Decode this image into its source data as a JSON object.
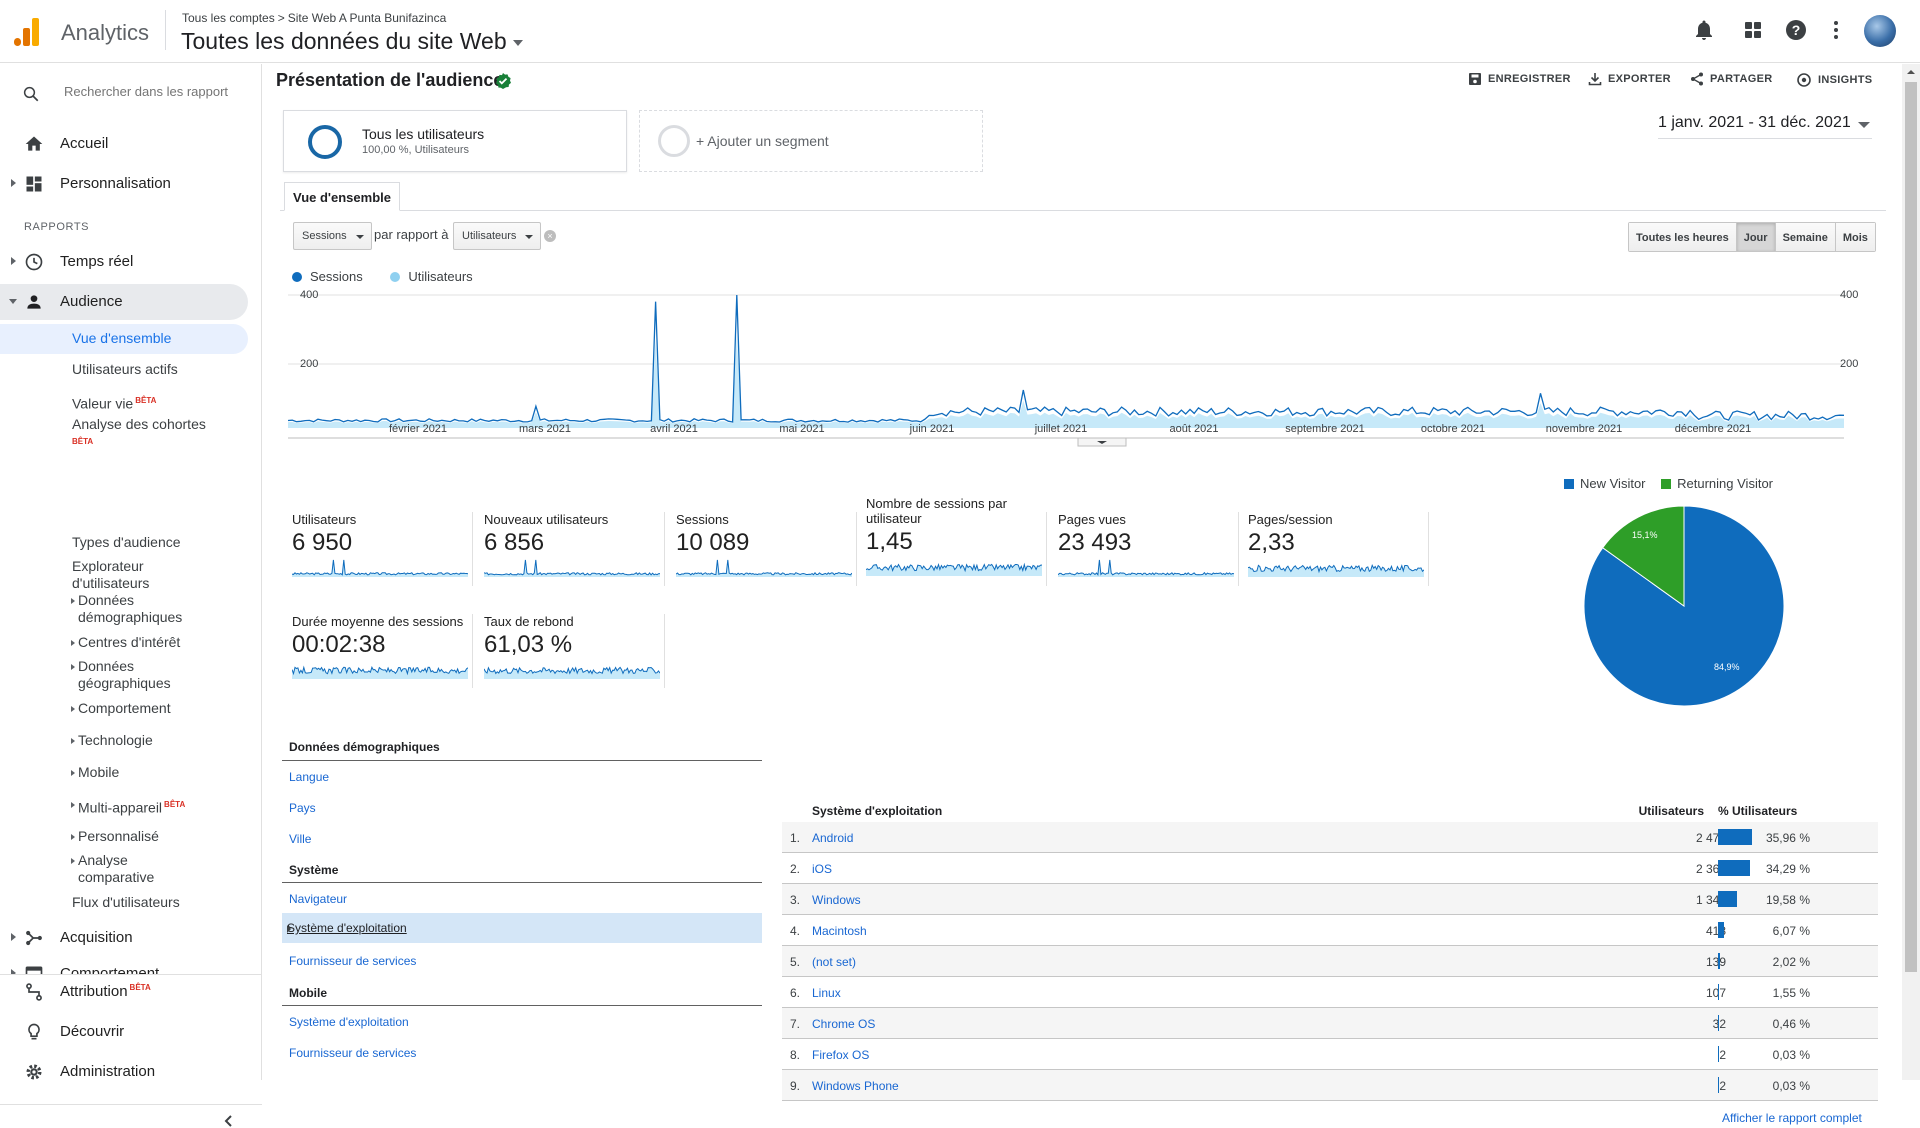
{
  "header": {
    "app_name": "Analytics",
    "breadcrumb": [
      "Tous les comptes",
      "Site Web A Punta Bunifazinca"
    ],
    "breadcrumb_sep": ">",
    "property": "Toutes les données du site Web"
  },
  "sidebar": {
    "search_placeholder": "Rechercher dans les rapport",
    "home": "Accueil",
    "custom": "Personnalisation",
    "reports_label": "RAPPORTS",
    "realtime": "Temps réel",
    "audience": "Audience",
    "audience_items": {
      "overview": "Vue d'ensemble",
      "active_users": "Utilisateurs actifs",
      "lifetime_value": "Valeur vie",
      "cohort": "Analyse des cohortes",
      "audiences": "Types d'audience",
      "user_explorer": "Explorateur d'utilisateurs",
      "demographics": "Données démographiques",
      "interests": "Centres d'intérêt",
      "geo": "Données géographiques",
      "behavior": "Comportement",
      "technology": "Technologie",
      "mobile": "Mobile",
      "cross_device": "Multi-appareil",
      "custom": "Personnalisé",
      "benchmarking": "Analyse comparative",
      "users_flow": "Flux d'utilisateurs"
    },
    "beta": "BÊTA",
    "acquisition": "Acquisition",
    "behavior": "Comportement",
    "attribution": "Attribution",
    "discover": "Découvrir",
    "admin": "Administration"
  },
  "report": {
    "title": "Présentation de l'audience",
    "actions": {
      "save": "ENREGISTRER",
      "export": "EXPORTER",
      "share": "PARTAGER",
      "insights": "INSIGHTS"
    },
    "segment_name": "Tous les utilisateurs",
    "segment_sub": "100,00 %, Utilisateurs",
    "add_segment": "+ Ajouter un segment",
    "date_range": "1 janv. 2021 - 31 déc. 2021",
    "tab": "Vue d'ensemble",
    "metric_dd": "Sessions",
    "vs_label": "par rapport à",
    "compare_dd": "Utilisateurs",
    "granularity": [
      "Toutes les heures",
      "Jour",
      "Semaine",
      "Mois"
    ],
    "granularity_selected": "Jour"
  },
  "chart_data": {
    "type": "line",
    "series": [
      {
        "name": "Sessions",
        "color": "#0f6cbd"
      },
      {
        "name": "Utilisateurs",
        "color": "#8fd0f0"
      }
    ],
    "y_ticks": [
      "400",
      "200"
    ],
    "ylim": [
      0,
      400
    ],
    "x_ticks": [
      "février 2021",
      "mars 2021",
      "avril 2021",
      "mai 2021",
      "juin 2021",
      "juillet 2021",
      "août 2021",
      "septembre 2021",
      "octobre 2021",
      "novembre 2021",
      "décembre 2021"
    ],
    "approx_daily_sessions": "mostly 10-60, spikes near 380 (late March) and 400 (mid April)"
  },
  "metrics": [
    {
      "name": "Utilisateurs",
      "value": "6 950"
    },
    {
      "name": "Nouveaux utilisateurs",
      "value": "6 856"
    },
    {
      "name": "Sessions",
      "value": "10 089"
    },
    {
      "name": "Nombre de sessions par utilisateur",
      "value": "1,45"
    },
    {
      "name": "Pages vues",
      "value": "23 493"
    },
    {
      "name": "Pages/session",
      "value": "2,33"
    },
    {
      "name": "Durée moyenne des sessions",
      "value": "00:02:38"
    },
    {
      "name": "Taux de rebond",
      "value": "61,03 %"
    }
  ],
  "pie": {
    "legend": [
      "New Visitor",
      "Returning Visitor"
    ],
    "colors": [
      "#0f6cbd",
      "#2e9e28"
    ],
    "new_pct_label": "84,9%",
    "returning_pct_label": "15,1%",
    "new_fraction": 0.849
  },
  "demographics": {
    "title": "Données démographiques",
    "items": [
      "Langue",
      "Pays",
      "Ville"
    ],
    "system_title": "Système",
    "system_items": [
      "Navigateur",
      "Système d'exploitation",
      "Fournisseur de services"
    ],
    "mobile_title": "Mobile",
    "mobile_items": [
      "Système d'exploitation",
      "Fournisseur de services"
    ]
  },
  "os_table": {
    "title": "Système d'exploitation",
    "col_users": "Utilisateurs",
    "col_pct": "% Utilisateurs",
    "rows": [
      {
        "num": "1.",
        "name": "Android",
        "users": "2 476",
        "pct": "35,96 %",
        "share": 35.96
      },
      {
        "num": "2.",
        "name": "iOS",
        "users": "2 361",
        "pct": "34,29 %",
        "share": 34.29
      },
      {
        "num": "3.",
        "name": "Windows",
        "users": "1 348",
        "pct": "19,58 %",
        "share": 19.58
      },
      {
        "num": "4.",
        "name": "Macintosh",
        "users": "418",
        "pct": "6,07 %",
        "share": 6.07
      },
      {
        "num": "5.",
        "name": "(not set)",
        "users": "139",
        "pct": "2,02 %",
        "share": 2.02
      },
      {
        "num": "6.",
        "name": "Linux",
        "users": "107",
        "pct": "1,55 %",
        "share": 1.55
      },
      {
        "num": "7.",
        "name": "Chrome OS",
        "users": "32",
        "pct": "0,46 %",
        "share": 0.46
      },
      {
        "num": "8.",
        "name": "Firefox OS",
        "users": "2",
        "pct": "0,03 %",
        "share": 0.03
      },
      {
        "num": "9.",
        "name": "Windows Phone",
        "users": "2",
        "pct": "0,03 %",
        "share": 0.03
      }
    ],
    "full_report": "Afficher le rapport complet"
  }
}
